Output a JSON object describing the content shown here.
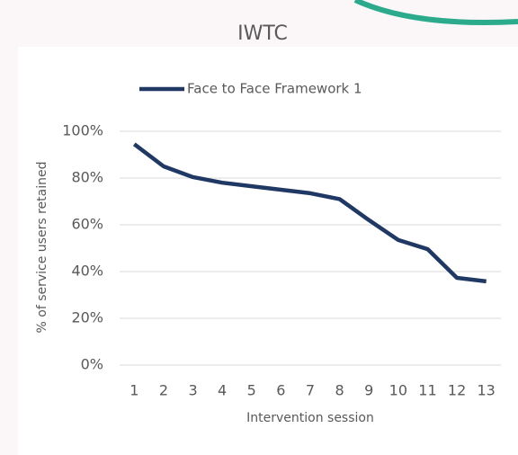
{
  "chart_data": {
    "type": "line",
    "title": "IWTC",
    "categories": [
      "1",
      "2",
      "3",
      "4",
      "5",
      "6",
      "7",
      "8",
      "9",
      "10",
      "11",
      "12",
      "13"
    ],
    "series": [
      {
        "name": "Face to Face Framework 1",
        "color": "#1f3864",
        "values": [
          94.5,
          85,
          80.4,
          78,
          76.5,
          75,
          73.5,
          71,
          62,
          53.5,
          49.6,
          37.3,
          35.8
        ]
      }
    ],
    "ylim": [
      0,
      100
    ],
    "yticks": [
      {
        "value": 0,
        "label": "0%"
      },
      {
        "value": 20,
        "label": "20%"
      },
      {
        "value": 40,
        "label": "40%"
      },
      {
        "value": 60,
        "label": "60%"
      },
      {
        "value": 80,
        "label": "80%"
      },
      {
        "value": 100,
        "label": "100%"
      }
    ],
    "xlabel": "Intervention session",
    "ylabel": "% of service users retained",
    "grid": true,
    "legend": "top"
  }
}
